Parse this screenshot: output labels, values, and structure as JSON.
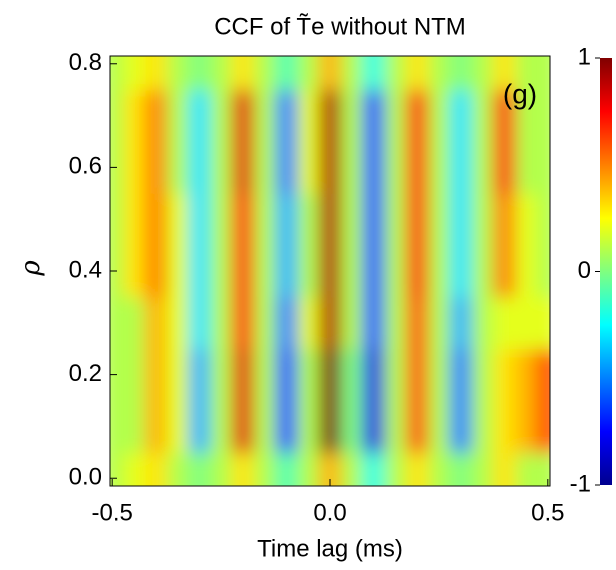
{
  "chart_data": {
    "type": "heatmap",
    "title": "CCF of T̃e without NTM",
    "annotation": "(g)",
    "x_label": "Time lag (ms)",
    "y_label": "ρ",
    "x": [
      -0.5,
      -0.45,
      -0.4,
      -0.35,
      -0.3,
      -0.25,
      -0.2,
      -0.15,
      -0.1,
      -0.05,
      0,
      0.05,
      0.1,
      0.15,
      0.2,
      0.25,
      0.3,
      0.35,
      0.4,
      0.45,
      0.5
    ],
    "y": [
      0,
      0.1,
      0.2,
      0.3,
      0.4,
      0.5,
      0.6,
      0.7,
      0.8
    ],
    "z": [
      [
        0.1,
        0.2,
        0.3,
        0.1,
        0.0,
        0.1,
        0.3,
        0.1,
        -0.1,
        0.1,
        0.4,
        0.1,
        -0.2,
        0.1,
        0.3,
        0.1,
        0.0,
        0.1,
        0.3,
        0.1,
        0.1
      ],
      [
        0.1,
        0.1,
        0.4,
        0.2,
        -0.4,
        0.1,
        0.8,
        0.1,
        -0.6,
        0.1,
        1.0,
        0.0,
        -0.8,
        0.1,
        0.6,
        0.1,
        -0.5,
        0.1,
        0.3,
        0.4,
        0.6
      ],
      [
        0.1,
        0.1,
        0.4,
        0.2,
        -0.4,
        0.1,
        0.8,
        0.1,
        -0.6,
        0.1,
        1.0,
        0.0,
        -0.8,
        0.1,
        0.6,
        0.1,
        -0.5,
        0.1,
        0.3,
        0.4,
        0.6
      ],
      [
        0.1,
        0.1,
        0.4,
        0.2,
        -0.3,
        0.1,
        0.7,
        0.1,
        -0.5,
        0.2,
        0.9,
        0.1,
        -0.6,
        0.1,
        0.6,
        0.1,
        -0.4,
        0.1,
        0.2,
        0.2,
        0.2
      ],
      [
        0.1,
        0.3,
        0.5,
        0.2,
        -0.3,
        0.1,
        0.7,
        0.1,
        -0.4,
        0.1,
        0.9,
        0.1,
        -0.6,
        0.1,
        0.7,
        0.1,
        -0.3,
        0.1,
        0.5,
        0.2,
        0.1
      ],
      [
        0.1,
        0.3,
        0.5,
        0.2,
        -0.3,
        0.1,
        0.7,
        0.1,
        -0.4,
        0.1,
        0.9,
        0.1,
        -0.6,
        0.1,
        0.7,
        0.1,
        -0.3,
        0.1,
        0.5,
        0.2,
        0.1
      ],
      [
        0.1,
        0.3,
        0.5,
        0.1,
        -0.3,
        0.1,
        0.8,
        0.1,
        -0.5,
        0.2,
        0.9,
        0.1,
        -0.6,
        0.1,
        0.7,
        0.1,
        -0.3,
        0.1,
        0.7,
        0.1,
        0.1
      ],
      [
        0.1,
        0.3,
        0.5,
        0.1,
        -0.3,
        0.1,
        0.8,
        0.1,
        -0.5,
        0.2,
        0.9,
        0.1,
        -0.6,
        0.1,
        0.7,
        0.1,
        -0.3,
        0.1,
        0.7,
        0.1,
        0.1
      ],
      [
        0.1,
        0.2,
        0.3,
        0.1,
        0.0,
        0.1,
        0.3,
        0.1,
        -0.1,
        0.1,
        0.4,
        0.1,
        -0.2,
        0.1,
        0.3,
        0.1,
        0.0,
        0.1,
        0.3,
        0.1,
        0.1
      ]
    ],
    "xlim": [
      -0.505,
      0.505
    ],
    "ylim": [
      -0.015,
      0.815
    ],
    "xticks": [
      -0.5,
      {
        "value": 0,
        "label": "0.0"
      },
      0.5
    ],
    "yticks": [
      {
        "value": 0,
        "label": "0.0"
      },
      0.2,
      0.4,
      0.6,
      0.8
    ],
    "colormap": "jet",
    "clim": [
      -1,
      1
    ],
    "cticks": [
      -1,
      0,
      1
    ]
  }
}
